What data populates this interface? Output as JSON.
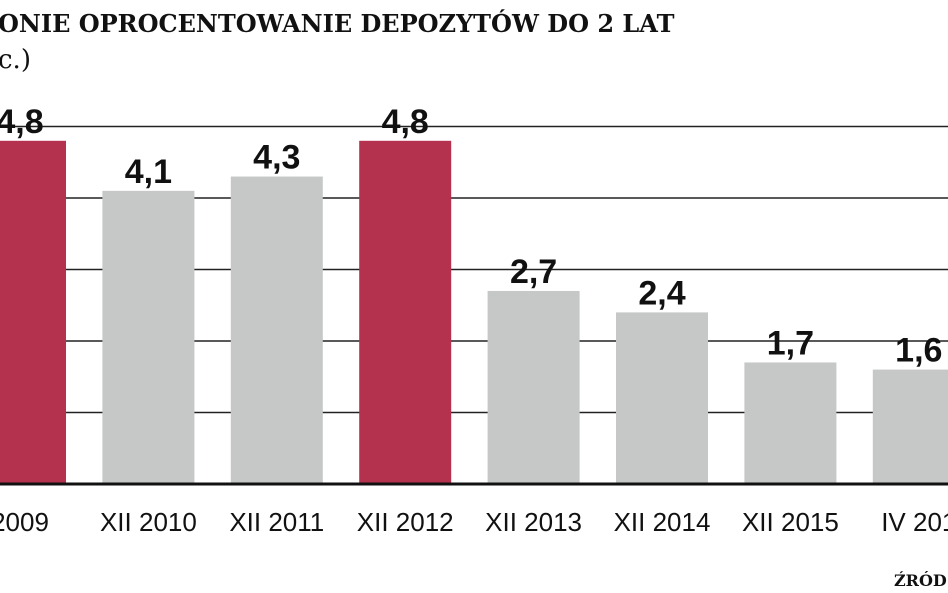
{
  "chart_data": {
    "type": "bar",
    "title": "ONIE OPROCENTOWANIE DEPOZYTÓW DO 2 LAT",
    "subtitle": "c.)",
    "categories": [
      "2009",
      "XII 2010",
      "XII 2011",
      "XII 2012",
      "XII 2013",
      "XII 2014",
      "XII 2015",
      "IV 201"
    ],
    "values": [
      4.8,
      4.1,
      4.3,
      4.8,
      2.7,
      2.4,
      1.7,
      1.6
    ],
    "data_labels": [
      "4,8",
      "4,1",
      "4,3",
      "4,8",
      "2,7",
      "2,4",
      "1,7",
      "1,6"
    ],
    "highlighted": [
      true,
      false,
      false,
      true,
      false,
      false,
      false,
      false
    ],
    "ylim": [
      0,
      5
    ],
    "grid": true,
    "xlabel": "",
    "ylabel": "",
    "source": "ŹRÓD",
    "colors": {
      "highlight": "#b5324f",
      "normal": "#c5c8c6",
      "grid": "#222222"
    }
  }
}
